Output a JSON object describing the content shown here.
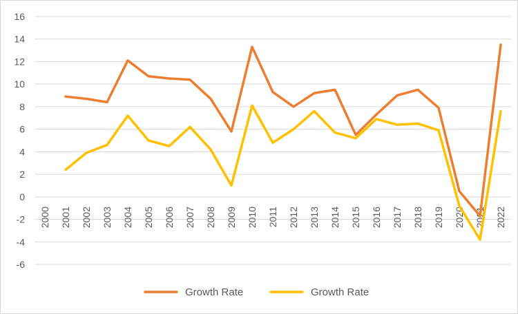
{
  "chart_data": {
    "type": "line",
    "title": "",
    "xlabel": "",
    "ylabel": "",
    "x": [
      "2000",
      "2001",
      "2002",
      "2003",
      "2004",
      "2005",
      "2006",
      "2007",
      "2008",
      "2009",
      "2010",
      "2011",
      "2012",
      "2013",
      "2014",
      "2015",
      "2016",
      "2017",
      "2018",
      "2019",
      "2020",
      "2021",
      "2022"
    ],
    "ylim": [
      -6,
      16
    ],
    "yticks": [
      16,
      14,
      12,
      10,
      8,
      6,
      4,
      2,
      0,
      -2,
      -4,
      -6
    ],
    "grid": true,
    "legend_position": "bottom",
    "series": [
      {
        "name": "Growth Rate",
        "color": "#ED7D31",
        "values": [
          null,
          8.9,
          8.7,
          8.4,
          12.1,
          10.7,
          10.5,
          10.4,
          8.7,
          5.8,
          13.3,
          9.3,
          8.0,
          9.2,
          9.5,
          5.5,
          7.3,
          9.0,
          9.5,
          7.9,
          0.5,
          -1.7,
          13.5
        ]
      },
      {
        "name": "Growth Rate",
        "color": "#FFC000",
        "values": [
          null,
          2.4,
          3.9,
          4.6,
          7.2,
          5.0,
          4.5,
          6.2,
          4.2,
          1.0,
          8.1,
          4.8,
          6.0,
          7.6,
          5.7,
          5.2,
          6.9,
          6.4,
          6.5,
          5.9,
          -0.8,
          -3.8,
          7.6
        ]
      }
    ]
  }
}
